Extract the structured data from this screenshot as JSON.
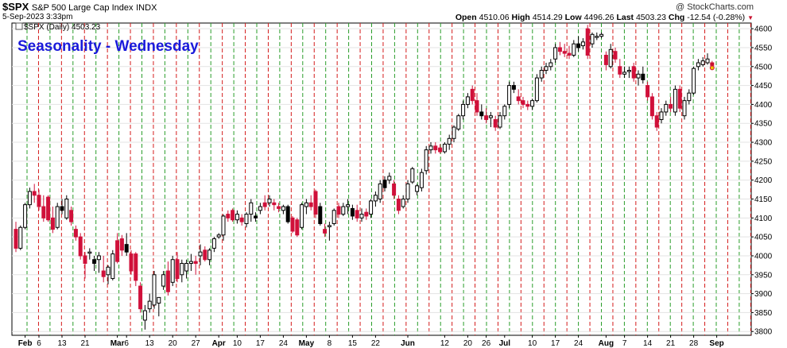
{
  "header": {
    "symbol": "$SPX",
    "description": "S&P 500 Large Cap Index",
    "exchange": "INDX",
    "datetime": "5-Sep-2023 3:33pm",
    "credit": "@ StockCharts.com",
    "open_label": "Open",
    "open": "4510.06",
    "high_label": "High",
    "high": "4514.29",
    "low_label": "Low",
    "low": "4496.26",
    "last_label": "Last",
    "last": "4503.23",
    "chg_label": "Chg",
    "chg": "-12.54 (-0.28%)"
  },
  "legend": {
    "text": "$SPX (Daily) 4503.23"
  },
  "chart_data": {
    "type": "candlestick",
    "title": "Seasonality - Wednesday",
    "ylim": [
      3790,
      4615
    ],
    "yticks": [
      3800,
      3850,
      3900,
      3950,
      4000,
      4050,
      4100,
      4150,
      4200,
      4250,
      4300,
      4350,
      4400,
      4450,
      4500,
      4550,
      4600
    ],
    "xticks": [
      {
        "label": "Feb",
        "month": true,
        "i": 2
      },
      {
        "label": "6",
        "i": 5
      },
      {
        "label": "13",
        "i": 10
      },
      {
        "label": "21",
        "i": 15
      },
      {
        "label": "Mar",
        "month": true,
        "i": 22
      },
      {
        "label": "6",
        "i": 24
      },
      {
        "label": "13",
        "i": 29
      },
      {
        "label": "20",
        "i": 34
      },
      {
        "label": "27",
        "i": 39
      },
      {
        "label": "Apr",
        "month": true,
        "i": 44
      },
      {
        "label": "10",
        "i": 48
      },
      {
        "label": "17",
        "i": 53
      },
      {
        "label": "24",
        "i": 58
      },
      {
        "label": "May",
        "month": true,
        "i": 63
      },
      {
        "label": "8",
        "i": 68
      },
      {
        "label": "15",
        "i": 73
      },
      {
        "label": "22",
        "i": 78
      },
      {
        "label": "Jun",
        "month": true,
        "i": 85
      },
      {
        "label": "12",
        "i": 93
      },
      {
        "label": "20",
        "i": 98
      },
      {
        "label": "26",
        "i": 102
      },
      {
        "label": "Jul",
        "month": true,
        "i": 106
      },
      {
        "label": "10",
        "i": 112
      },
      {
        "label": "17",
        "i": 117
      },
      {
        "label": "24",
        "i": 122
      },
      {
        "label": "Aug",
        "month": true,
        "i": 128
      },
      {
        "label": "7",
        "i": 132
      },
      {
        "label": "14",
        "i": 137
      },
      {
        "label": "21",
        "i": 142
      },
      {
        "label": "28",
        "i": 147
      },
      {
        "label": "Sep",
        "month": true,
        "i": 152
      }
    ],
    "candles": [
      {
        "o": 4070,
        "h": 4090,
        "l": 4010,
        "c": 4020
      },
      {
        "o": 4020,
        "h": 4080,
        "l": 4015,
        "c": 4075
      },
      {
        "o": 4075,
        "h": 4140,
        "l": 4070,
        "c": 4135
      },
      {
        "o": 4135,
        "h": 4180,
        "l": 4125,
        "c": 4170
      },
      {
        "o": 4170,
        "h": 4190,
        "l": 4140,
        "c": 4160
      },
      {
        "o": 4160,
        "h": 4175,
        "l": 4120,
        "c": 4130
      },
      {
        "o": 4130,
        "h": 4160,
        "l": 4090,
        "c": 4100
      },
      {
        "o": 4155,
        "h": 4160,
        "l": 4090,
        "c": 4095
      },
      {
        "o": 4100,
        "h": 4130,
        "l": 4060,
        "c": 4070
      },
      {
        "o": 4075,
        "h": 4140,
        "l": 4070,
        "c": 4130
      },
      {
        "o": 4130,
        "h": 4150,
        "l": 4110,
        "c": 4120
      },
      {
        "o": 4100,
        "h": 4160,
        "l": 4095,
        "c": 4150
      },
      {
        "o": 4120,
        "h": 4130,
        "l": 4080,
        "c": 4090
      },
      {
        "o": 4070,
        "h": 4080,
        "l": 4040,
        "c": 4050
      },
      {
        "o": 4050,
        "h": 4060,
        "l": 3990,
        "c": 4000
      },
      {
        "o": 4000,
        "h": 4010,
        "l": 3940,
        "c": 3980
      },
      {
        "o": 4010,
        "h": 4020,
        "l": 3990,
        "c": 4010
      },
      {
        "o": 3990,
        "h": 4000,
        "l": 3960,
        "c": 3980
      },
      {
        "o": 3990,
        "h": 4010,
        "l": 3955,
        "c": 4000
      },
      {
        "o": 3960,
        "h": 4000,
        "l": 3930,
        "c": 3945
      },
      {
        "o": 3950,
        "h": 3975,
        "l": 3925,
        "c": 3970
      },
      {
        "o": 3940,
        "h": 4015,
        "l": 3935,
        "c": 4005
      },
      {
        "o": 4040,
        "h": 4060,
        "l": 3980,
        "c": 3985
      },
      {
        "o": 4045,
        "h": 4055,
        "l": 4000,
        "c": 4015
      },
      {
        "o": 4030,
        "h": 4060,
        "l": 4000,
        "c": 4010
      },
      {
        "o": 4005,
        "h": 4015,
        "l": 3950,
        "c": 3960
      },
      {
        "o": 4005,
        "h": 4010,
        "l": 3920,
        "c": 3935
      },
      {
        "o": 3920,
        "h": 3930,
        "l": 3850,
        "c": 3860
      },
      {
        "o": 3830,
        "h": 3870,
        "l": 3805,
        "c": 3855
      },
      {
        "o": 3860,
        "h": 3900,
        "l": 3850,
        "c": 3880
      },
      {
        "o": 3870,
        "h": 3960,
        "l": 3860,
        "c": 3950
      },
      {
        "o": 3875,
        "h": 3890,
        "l": 3840,
        "c": 3890
      },
      {
        "o": 3920,
        "h": 3960,
        "l": 3910,
        "c": 3950
      },
      {
        "o": 3960,
        "h": 3985,
        "l": 3895,
        "c": 3905
      },
      {
        "o": 3930,
        "h": 4000,
        "l": 3920,
        "c": 3990
      },
      {
        "o": 3990,
        "h": 4010,
        "l": 3930,
        "c": 3940
      },
      {
        "o": 3950,
        "h": 3990,
        "l": 3930,
        "c": 3980
      },
      {
        "o": 3960,
        "h": 3990,
        "l": 3940,
        "c": 3980
      },
      {
        "o": 3980,
        "h": 4005,
        "l": 3960,
        "c": 3985
      },
      {
        "o": 3985,
        "h": 4000,
        "l": 3950,
        "c": 3980
      },
      {
        "o": 4000,
        "h": 4030,
        "l": 3975,
        "c": 4010
      },
      {
        "o": 4015,
        "h": 4025,
        "l": 3985,
        "c": 3990
      },
      {
        "o": 3990,
        "h": 4020,
        "l": 3975,
        "c": 4015
      },
      {
        "o": 4020,
        "h": 4050,
        "l": 4010,
        "c": 4045
      },
      {
        "o": 4050,
        "h": 4060,
        "l": 4045,
        "c": 4055
      },
      {
        "o": 4055,
        "h": 4110,
        "l": 4040,
        "c": 4105
      },
      {
        "o": 4110,
        "h": 4120,
        "l": 4090,
        "c": 4100
      },
      {
        "o": 4120,
        "h": 4125,
        "l": 4090,
        "c": 4095
      },
      {
        "o": 4095,
        "h": 4120,
        "l": 4085,
        "c": 4110
      },
      {
        "o": 4100,
        "h": 4110,
        "l": 4080,
        "c": 4090
      },
      {
        "o": 4085,
        "h": 4115,
        "l": 4075,
        "c": 4110
      },
      {
        "o": 4110,
        "h": 4150,
        "l": 4090,
        "c": 4140
      },
      {
        "o": 4105,
        "h": 4115,
        "l": 4090,
        "c": 4100
      },
      {
        "o": 4120,
        "h": 4140,
        "l": 4110,
        "c": 4130
      },
      {
        "o": 4140,
        "h": 4160,
        "l": 4120,
        "c": 4130
      },
      {
        "o": 4140,
        "h": 4160,
        "l": 4130,
        "c": 4150
      },
      {
        "o": 4140,
        "h": 4150,
        "l": 4120,
        "c": 4135
      },
      {
        "o": 4130,
        "h": 4140,
        "l": 4115,
        "c": 4125
      },
      {
        "o": 4120,
        "h": 4135,
        "l": 4110,
        "c": 4130
      },
      {
        "o": 4130,
        "h": 4135,
        "l": 4085,
        "c": 4090
      },
      {
        "o": 4100,
        "h": 4105,
        "l": 4060,
        "c": 4065
      },
      {
        "o": 4095,
        "h": 4100,
        "l": 4050,
        "c": 4055
      },
      {
        "o": 4075,
        "h": 4140,
        "l": 4070,
        "c": 4135
      },
      {
        "o": 4130,
        "h": 4150,
        "l": 4110,
        "c": 4140
      },
      {
        "o": 4140,
        "h": 4160,
        "l": 4120,
        "c": 4130
      },
      {
        "o": 4170,
        "h": 4175,
        "l": 4100,
        "c": 4110
      },
      {
        "o": 4130,
        "h": 4140,
        "l": 4080,
        "c": 4085
      },
      {
        "o": 4070,
        "h": 4085,
        "l": 4050,
        "c": 4060
      },
      {
        "o": 4080,
        "h": 4090,
        "l": 4040,
        "c": 4080
      },
      {
        "o": 4085,
        "h": 4125,
        "l": 4080,
        "c": 4120
      },
      {
        "o": 4130,
        "h": 4140,
        "l": 4100,
        "c": 4110
      },
      {
        "o": 4110,
        "h": 4140,
        "l": 4105,
        "c": 4130
      },
      {
        "o": 4130,
        "h": 4150,
        "l": 4110,
        "c": 4135
      },
      {
        "o": 4125,
        "h": 4135,
        "l": 4095,
        "c": 4105
      },
      {
        "o": 4120,
        "h": 4135,
        "l": 4090,
        "c": 4100
      },
      {
        "o": 4100,
        "h": 4125,
        "l": 4090,
        "c": 4110
      },
      {
        "o": 4115,
        "h": 4125,
        "l": 4095,
        "c": 4105
      },
      {
        "o": 4110,
        "h": 4150,
        "l": 4100,
        "c": 4145
      },
      {
        "o": 4145,
        "h": 4170,
        "l": 4130,
        "c": 4160
      },
      {
        "o": 4150,
        "h": 4200,
        "l": 4140,
        "c": 4190
      },
      {
        "o": 4200,
        "h": 4210,
        "l": 4170,
        "c": 4180
      },
      {
        "o": 4200,
        "h": 4220,
        "l": 4190,
        "c": 4210
      },
      {
        "o": 4190,
        "h": 4200,
        "l": 4150,
        "c": 4160
      },
      {
        "o": 4150,
        "h": 4160,
        "l": 4110,
        "c": 4120
      },
      {
        "o": 4130,
        "h": 4160,
        "l": 4125,
        "c": 4150
      },
      {
        "o": 4150,
        "h": 4200,
        "l": 4140,
        "c": 4190
      },
      {
        "o": 4195,
        "h": 4235,
        "l": 4190,
        "c": 4230
      },
      {
        "o": 4170,
        "h": 4190,
        "l": 4160,
        "c": 4185
      },
      {
        "o": 4180,
        "h": 4230,
        "l": 4170,
        "c": 4220
      },
      {
        "o": 4225,
        "h": 4290,
        "l": 4215,
        "c": 4280
      },
      {
        "o": 4280,
        "h": 4300,
        "l": 4270,
        "c": 4290
      },
      {
        "o": 4290,
        "h": 4300,
        "l": 4270,
        "c": 4280
      },
      {
        "o": 4285,
        "h": 4295,
        "l": 4270,
        "c": 4275
      },
      {
        "o": 4275,
        "h": 4300,
        "l": 4270,
        "c": 4295
      },
      {
        "o": 4295,
        "h": 4320,
        "l": 4280,
        "c": 4310
      },
      {
        "o": 4310,
        "h": 4345,
        "l": 4300,
        "c": 4340
      },
      {
        "o": 4335,
        "h": 4375,
        "l": 4330,
        "c": 4370
      },
      {
        "o": 4370,
        "h": 4410,
        "l": 4360,
        "c": 4400
      },
      {
        "o": 4400,
        "h": 4430,
        "l": 4390,
        "c": 4420
      },
      {
        "o": 4440,
        "h": 4450,
        "l": 4400,
        "c": 4410
      },
      {
        "o": 4410,
        "h": 4430,
        "l": 4370,
        "c": 4380
      },
      {
        "o": 4380,
        "h": 4400,
        "l": 4360,
        "c": 4370
      },
      {
        "o": 4370,
        "h": 4390,
        "l": 4350,
        "c": 4360
      },
      {
        "o": 4365,
        "h": 4380,
        "l": 4340,
        "c": 4370
      },
      {
        "o": 4360,
        "h": 4370,
        "l": 4330,
        "c": 4340
      },
      {
        "o": 4340,
        "h": 4380,
        "l": 4335,
        "c": 4370
      },
      {
        "o": 4370,
        "h": 4400,
        "l": 4360,
        "c": 4395
      },
      {
        "o": 4400,
        "h": 4460,
        "l": 4390,
        "c": 4450
      },
      {
        "o": 4450,
        "h": 4460,
        "l": 4430,
        "c": 4440
      },
      {
        "o": 4420,
        "h": 4440,
        "l": 4400,
        "c": 4410
      },
      {
        "o": 4410,
        "h": 4420,
        "l": 4390,
        "c": 4400
      },
      {
        "o": 4400,
        "h": 4410,
        "l": 4385,
        "c": 4395
      },
      {
        "o": 4395,
        "h": 4415,
        "l": 4385,
        "c": 4410
      },
      {
        "o": 4410,
        "h": 4480,
        "l": 4405,
        "c": 4470
      },
      {
        "o": 4470,
        "h": 4500,
        "l": 4460,
        "c": 4490
      },
      {
        "o": 4490,
        "h": 4510,
        "l": 4480,
        "c": 4500
      },
      {
        "o": 4500,
        "h": 4520,
        "l": 4490,
        "c": 4510
      },
      {
        "o": 4520,
        "h": 4560,
        "l": 4510,
        "c": 4550
      },
      {
        "o": 4550,
        "h": 4565,
        "l": 4530,
        "c": 4540
      },
      {
        "o": 4540,
        "h": 4560,
        "l": 4525,
        "c": 4535
      },
      {
        "o": 4535,
        "h": 4555,
        "l": 4520,
        "c": 4530
      },
      {
        "o": 4530,
        "h": 4570,
        "l": 4525,
        "c": 4560
      },
      {
        "o": 4560,
        "h": 4580,
        "l": 4540,
        "c": 4550
      },
      {
        "o": 4555,
        "h": 4575,
        "l": 4545,
        "c": 4565
      },
      {
        "o": 4600,
        "h": 4610,
        "l": 4520,
        "c": 4530
      },
      {
        "o": 4560,
        "h": 4590,
        "l": 4550,
        "c": 4585
      },
      {
        "o": 4580,
        "h": 4590,
        "l": 4570,
        "c": 4580
      },
      {
        "o": 4580,
        "h": 4590,
        "l": 4575,
        "c": 4585
      },
      {
        "o": 4530,
        "h": 4540,
        "l": 4490,
        "c": 4505
      },
      {
        "o": 4500,
        "h": 4560,
        "l": 4495,
        "c": 4545
      },
      {
        "o": 4540,
        "h": 4550,
        "l": 4510,
        "c": 4520
      },
      {
        "o": 4500,
        "h": 4520,
        "l": 4470,
        "c": 4480
      },
      {
        "o": 4480,
        "h": 4500,
        "l": 4470,
        "c": 4485
      },
      {
        "o": 4490,
        "h": 4500,
        "l": 4470,
        "c": 4490
      },
      {
        "o": 4500,
        "h": 4510,
        "l": 4460,
        "c": 4470
      },
      {
        "o": 4470,
        "h": 4490,
        "l": 4450,
        "c": 4480
      },
      {
        "o": 4480,
        "h": 4500,
        "l": 4455,
        "c": 4465
      },
      {
        "o": 4450,
        "h": 4460,
        "l": 4410,
        "c": 4420
      },
      {
        "o": 4420,
        "h": 4430,
        "l": 4360,
        "c": 4370
      },
      {
        "o": 4370,
        "h": 4380,
        "l": 4330,
        "c": 4340
      },
      {
        "o": 4360,
        "h": 4390,
        "l": 4350,
        "c": 4380
      },
      {
        "o": 4380,
        "h": 4410,
        "l": 4370,
        "c": 4400
      },
      {
        "o": 4400,
        "h": 4420,
        "l": 4380,
        "c": 4390
      },
      {
        "o": 4380,
        "h": 4450,
        "l": 4370,
        "c": 4440
      },
      {
        "o": 4440,
        "h": 4450,
        "l": 4380,
        "c": 4390
      },
      {
        "o": 4370,
        "h": 4420,
        "l": 4360,
        "c": 4410
      },
      {
        "o": 4410,
        "h": 4440,
        "l": 4400,
        "c": 4430
      },
      {
        "o": 4430,
        "h": 4500,
        "l": 4425,
        "c": 4495
      },
      {
        "o": 4500,
        "h": 4520,
        "l": 4490,
        "c": 4510
      },
      {
        "o": 4505,
        "h": 4525,
        "l": 4500,
        "c": 4515
      },
      {
        "o": 4510,
        "h": 4535,
        "l": 4505,
        "c": 4520
      },
      {
        "o": 4510,
        "h": 4515,
        "l": 4496,
        "c": 4503
      }
    ]
  }
}
